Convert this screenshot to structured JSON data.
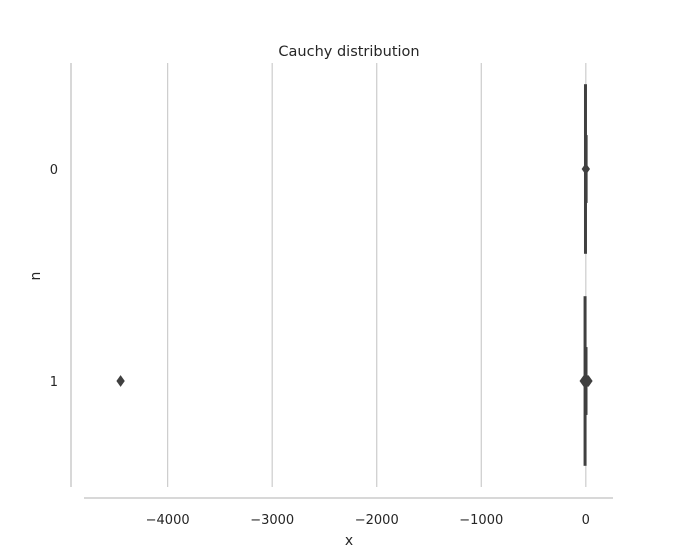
{
  "chart_data": {
    "type": "boxen",
    "orientation": "horizontal",
    "title": "Cauchy distribution",
    "xlabel": "x",
    "ylabel": "n",
    "xlim": [
      -4800,
      260
    ],
    "xticks": [
      -4000,
      -3000,
      -2000,
      -1000,
      0
    ],
    "xtick_labels": [
      "−4000",
      "−3000",
      "−2000",
      "−1000",
      "0"
    ],
    "grid": "vertical",
    "categories": [
      "0",
      "1"
    ],
    "series": [
      {
        "category": "0",
        "whisker_low": -8,
        "whisker_high": 8,
        "box_low": -2,
        "box_high": 2,
        "median": 0,
        "outliers": [
          0
        ]
      },
      {
        "category": "1",
        "whisker_low": -12,
        "whisker_high": 12,
        "box_low": -3,
        "box_high": 3,
        "median": 0,
        "outliers": [
          -4450,
          -20,
          -10,
          0,
          10,
          20,
          25
        ]
      }
    ],
    "colors": {
      "box": "#404040",
      "grid": "#cccccc",
      "spine": "#cccccc",
      "text": "#262626"
    }
  }
}
